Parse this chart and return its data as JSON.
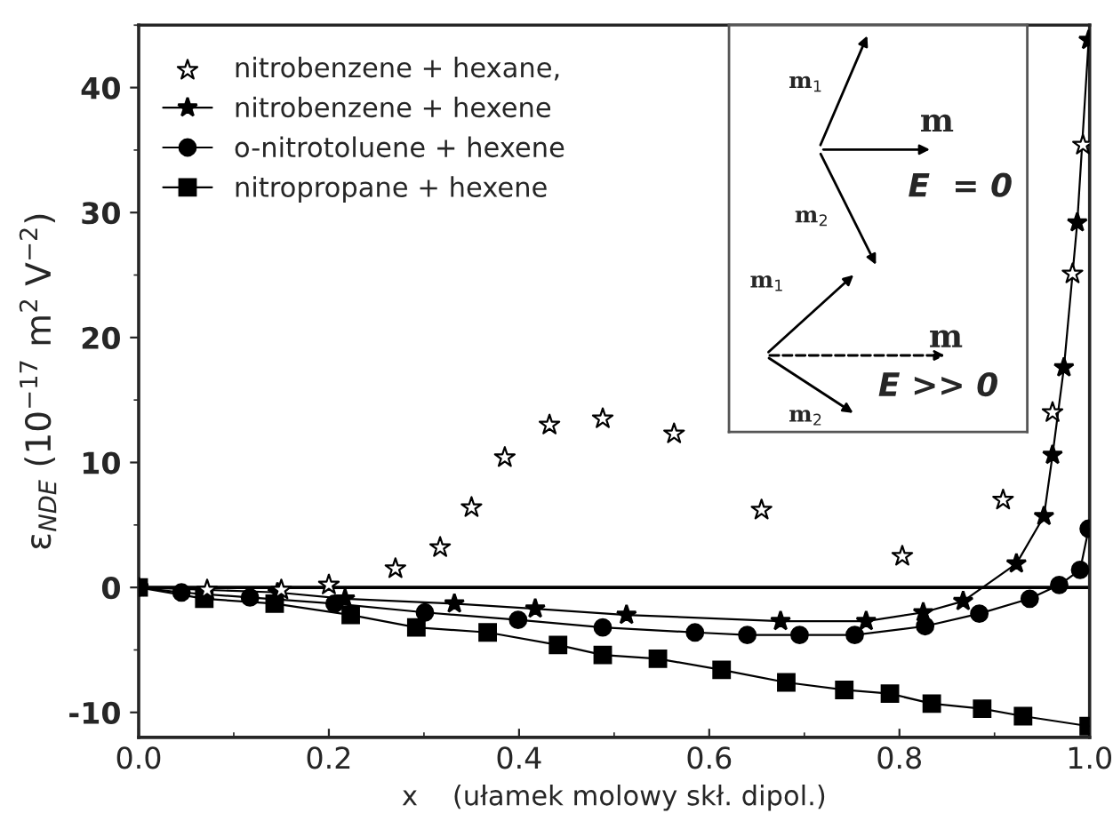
{
  "chart_data": {
    "type": "line",
    "xlabel": "x    (ułamek molowy skł. dipol.)",
    "ylabel": "ε$_{NDE}$ (10$^{−17}$ m$^{2}$ V$^{−2}$)",
    "xlim": [
      0,
      1
    ],
    "ylim": [
      -12,
      45
    ],
    "xticks": [
      {
        "value": 0,
        "label": "0.0"
      },
      {
        "value": 0.2,
        "label": "0.2"
      },
      {
        "value": 0.4,
        "label": "0.4"
      },
      {
        "value": 0.6,
        "label": "0.6"
      },
      {
        "value": 0.8,
        "label": "0.8"
      },
      {
        "value": 1,
        "label": "1.0"
      }
    ],
    "yticks": [
      -10,
      0,
      10,
      20,
      30,
      40
    ],
    "grid": false,
    "legend": "top left",
    "ref_lines": [
      {
        "axis": "y",
        "value": 0,
        "color": "#000000",
        "line_style": "solid"
      }
    ],
    "annotations": [
      "m$_{1}$",
      "m",
      "m$_{2}$",
      "E  = 0",
      "m$_{1}$",
      "m",
      "m$_{2}$",
      "E >> 0"
    ],
    "series": [
      {
        "name": "nitrobenzene + hexane,",
        "type": "scatter",
        "marker": "star",
        "color": "#000000",
        "x": [
          0.072,
          0.15,
          0.2,
          0.27,
          0.317,
          0.35,
          0.385,
          0.432,
          0.488,
          0.563,
          0.655,
          0.803,
          0.909,
          0.961,
          0.982,
          0.993
        ],
        "values": [
          -0.2,
          -0.2,
          0.2,
          1.5,
          3.2,
          6.4,
          10.4,
          13.0,
          13.5,
          12.3,
          6.2,
          2.5,
          7.0,
          14.0,
          25.1,
          35.4
        ]
      },
      {
        "name": "nitrobenzene + hexene",
        "marker": "star",
        "line_style": "solid",
        "color": "#000000",
        "x": [
          0,
          0.146,
          0.217,
          0.332,
          0.417,
          0.513,
          0.675,
          0.765,
          0.825,
          0.867,
          0.923,
          0.952,
          0.961,
          0.973,
          0.987,
          0.999
        ],
        "values": [
          0,
          -0.4,
          -0.9,
          -1.3,
          -1.7,
          -2.2,
          -2.7,
          -2.7,
          -2.0,
          -1.1,
          1.9,
          5.7,
          10.6,
          17.6,
          29.2,
          43.8
        ]
      },
      {
        "name": "o-nitrotoluene + hexene",
        "marker": "circle",
        "line_style": "solid",
        "color": "#000000",
        "x": [
          0,
          0.045,
          0.117,
          0.206,
          0.301,
          0.399,
          0.488,
          0.585,
          0.64,
          0.695,
          0.753,
          0.827,
          0.884,
          0.937,
          0.968,
          0.99,
          0.999
        ],
        "values": [
          0,
          -0.4,
          -0.8,
          -1.3,
          -2.0,
          -2.6,
          -3.2,
          -3.6,
          -3.8,
          -3.8,
          -3.8,
          -3.1,
          -2.1,
          -0.9,
          0.2,
          1.4,
          4.7
        ]
      },
      {
        "name": "nitropropane + hexene",
        "marker": "square",
        "line_style": "solid",
        "color": "#000000",
        "x": [
          0,
          0.069,
          0.143,
          0.223,
          0.292,
          0.367,
          0.441,
          0.488,
          0.546,
          0.613,
          0.681,
          0.742,
          0.79,
          0.834,
          0.887,
          0.93,
          0.999
        ],
        "values": [
          0,
          -0.9,
          -1.3,
          -2.2,
          -3.2,
          -3.6,
          -4.6,
          -5.4,
          -5.7,
          -6.6,
          -7.6,
          -8.2,
          -8.5,
          -9.3,
          -9.7,
          -10.3,
          -11.1
        ]
      }
    ]
  }
}
